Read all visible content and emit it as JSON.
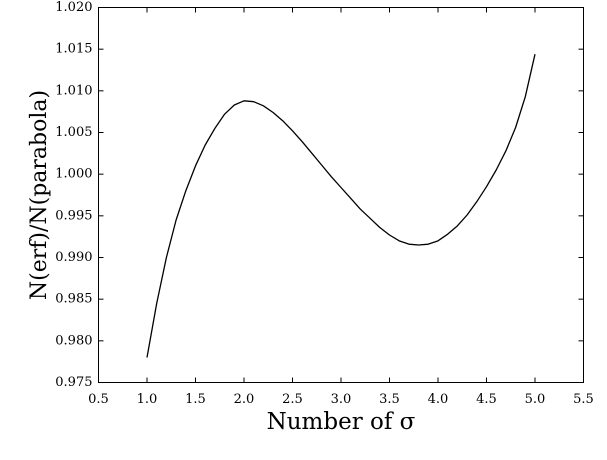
{
  "chart_data": {
    "type": "line",
    "xlabel": "Number of σ",
    "ylabel": "N(erf)/N(parabola)",
    "x": [
      1.0,
      1.1,
      1.2,
      1.3,
      1.4,
      1.5,
      1.6,
      1.7,
      1.8,
      1.9,
      2.0,
      2.1,
      2.2,
      2.3,
      2.4,
      2.5,
      2.6,
      2.7,
      2.8,
      2.9,
      3.0,
      3.1,
      3.2,
      3.3,
      3.4,
      3.5,
      3.6,
      3.7,
      3.8,
      3.9,
      4.0,
      4.1,
      4.2,
      4.3,
      4.4,
      4.5,
      4.6,
      4.7,
      4.8,
      4.9,
      5.0
    ],
    "values": [
      0.978,
      0.9845,
      0.99,
      0.9945,
      0.998,
      1.001,
      1.0035,
      1.0055,
      1.0072,
      1.0083,
      1.0088,
      1.0087,
      1.0082,
      1.0074,
      1.0064,
      1.0052,
      1.0039,
      1.0025,
      1.0011,
      0.9997,
      0.9984,
      0.9971,
      0.9958,
      0.9947,
      0.9936,
      0.9927,
      0.992,
      0.9916,
      0.9915,
      0.9916,
      0.992,
      0.9928,
      0.9938,
      0.9951,
      0.9967,
      0.9985,
      1.0005,
      1.0028,
      1.0056,
      1.0093,
      1.0144
    ],
    "color": "#000000",
    "xlim": [
      0.5,
      5.5
    ],
    "xticks": [
      0.5,
      {
        "value": 1,
        "label": "1.0"
      },
      1.5,
      {
        "value": 2,
        "label": "2.0"
      },
      2.5,
      {
        "value": 3,
        "label": "3.0"
      },
      3.5,
      {
        "value": 4,
        "label": "4.0"
      },
      4.5,
      {
        "value": 5,
        "label": "5.0"
      },
      5.5
    ],
    "ylim": [
      0.975,
      1.02
    ],
    "yticks": [
      0.975,
      {
        "value": 0.98,
        "label": "0.980"
      },
      0.985,
      {
        "value": 0.99,
        "label": "0.990"
      },
      0.995,
      {
        "value": 1,
        "label": "1.000"
      },
      1.005,
      {
        "value": 1.01,
        "label": "1.010"
      },
      1.015,
      {
        "value": 1.02,
        "label": "1.020"
      }
    ]
  }
}
